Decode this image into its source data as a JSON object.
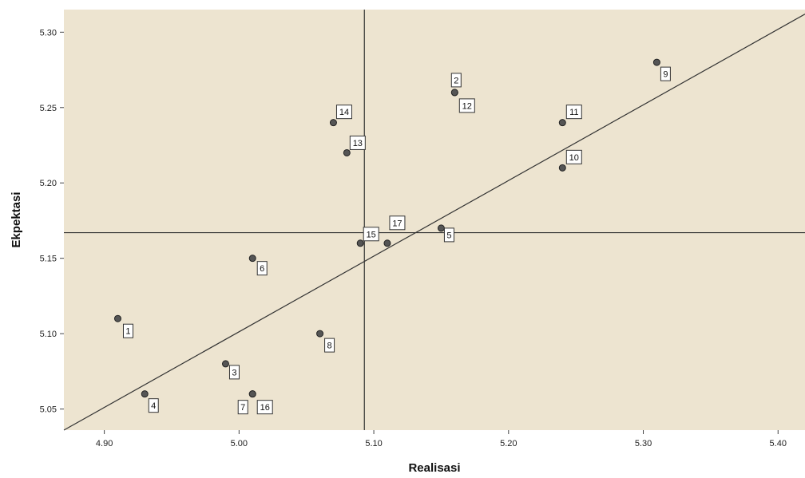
{
  "chart_data": {
    "type": "scatter",
    "title": "",
    "xlabel": "Realisasi",
    "ylabel": "Ekpektasi",
    "xlim": [
      4.87,
      5.42
    ],
    "ylim": [
      5.036,
      5.315
    ],
    "x_ticks": [
      "4.90",
      "5.00",
      "5.10",
      "5.20",
      "5.30",
      "5.40"
    ],
    "y_ticks": [
      "5.05",
      "5.10",
      "5.15",
      "5.20",
      "5.25",
      "5.30"
    ],
    "x_tick_values": [
      4.9,
      5.0,
      5.1,
      5.2,
      5.3,
      5.4
    ],
    "y_tick_values": [
      5.05,
      5.1,
      5.15,
      5.2,
      5.25,
      5.3
    ],
    "grid": false,
    "background_color": "#ede4d0",
    "point_color": "#555555",
    "line_color": "#333333",
    "reference_lines": {
      "x_mean": 5.093,
      "y_mean": 5.167
    },
    "fit_line": {
      "x1": 4.87,
      "y1": 5.036,
      "x2": 5.42,
      "y2": 5.312
    },
    "points": [
      {
        "label": "1",
        "x": 4.91,
        "y": 5.11
      },
      {
        "label": "2",
        "x": 5.16,
        "y": 5.26
      },
      {
        "label": "3",
        "x": 4.99,
        "y": 5.08
      },
      {
        "label": "4",
        "x": 4.93,
        "y": 5.06
      },
      {
        "label": "5",
        "x": 5.15,
        "y": 5.17
      },
      {
        "label": "6",
        "x": 5.01,
        "y": 5.15
      },
      {
        "label": "7",
        "x": 5.01,
        "y": 5.06
      },
      {
        "label": "8",
        "x": 5.06,
        "y": 5.1
      },
      {
        "label": "9",
        "x": 5.31,
        "y": 5.28
      },
      {
        "label": "10",
        "x": 5.24,
        "y": 5.21
      },
      {
        "label": "11",
        "x": 5.24,
        "y": 5.24
      },
      {
        "label": "12",
        "x": 5.16,
        "y": 5.26
      },
      {
        "label": "13",
        "x": 5.08,
        "y": 5.22
      },
      {
        "label": "14",
        "x": 5.07,
        "y": 5.24
      },
      {
        "label": "15",
        "x": 5.09,
        "y": 5.16
      },
      {
        "label": "16",
        "x": 5.01,
        "y": 5.06
      },
      {
        "label": "17",
        "x": 5.11,
        "y": 5.16
      }
    ]
  }
}
